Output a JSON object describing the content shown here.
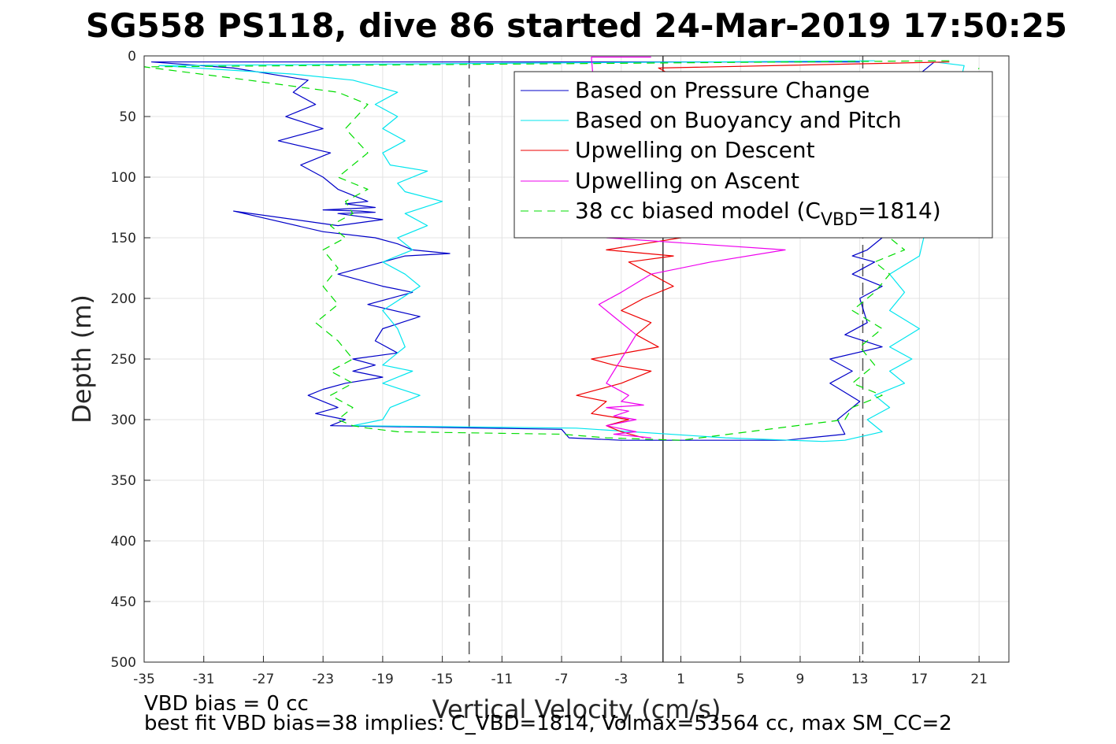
{
  "chart_data": {
    "type": "line",
    "title": "SG558 PS118, dive 86 started 24-Mar-2019 17:50:25",
    "xlabel": "Vertical Velocity (cm/s)",
    "ylabel": "Depth (m)",
    "xlim": [
      -35,
      23
    ],
    "ylim": [
      0,
      500
    ],
    "y_reversed": true,
    "grid": true,
    "xticks": [
      -35,
      -31,
      -27,
      -23,
      -19,
      -15,
      -11,
      -7,
      -3,
      1,
      5,
      9,
      13,
      17,
      21
    ],
    "yticks": [
      0,
      50,
      100,
      150,
      200,
      250,
      300,
      350,
      400,
      450,
      500
    ],
    "vertical_lines": [
      {
        "x": -13.2,
        "style": "dashed",
        "color": "#555555"
      },
      {
        "x": -0.2,
        "style": "solid",
        "color": "#333333"
      },
      {
        "x": 13.2,
        "style": "dashed",
        "color": "#555555"
      }
    ],
    "legend_position": "top-right",
    "legend": [
      {
        "label": "Based on Pressure Change",
        "color": "#0000c8",
        "dash": "none"
      },
      {
        "label": "Based on Buoyancy and Pitch",
        "color": "#00e5ee",
        "dash": "none"
      },
      {
        "label": "Upwelling on Descent",
        "color": "#ee0000",
        "dash": "none"
      },
      {
        "label": "Upwelling on Ascent",
        "color": "#ee00ee",
        "dash": "none"
      },
      {
        "label_pre": "38 cc biased model (C",
        "label_sub": "VBD",
        "label_post": "=1814)",
        "color": "#00dd00",
        "dash": "10,7"
      }
    ],
    "series": [
      {
        "color": "#0000c8",
        "dash": "none",
        "x": [
          13,
          -34.5,
          -29,
          -24,
          -25,
          -23.5,
          -25.5,
          -23,
          -26,
          -22.5,
          -24.5,
          -23,
          -22,
          -20,
          -21.5,
          -19.5,
          -23,
          -20.5,
          -19.5,
          -22,
          -19,
          -22,
          -29,
          -23,
          -19.5,
          -18,
          -17,
          -14.5,
          -17.5,
          -19,
          -22,
          -19,
          -17,
          -20,
          -16.5,
          -19,
          -19.5,
          -18,
          -21,
          -19.5,
          -21,
          -19,
          -21.5,
          -23,
          -24,
          -22,
          -23.5,
          -21.5,
          -22.5,
          -7,
          -6.5,
          -3,
          -1.5,
          8,
          12,
          11.5,
          12,
          13,
          11,
          12.5,
          11,
          14.5,
          12,
          13.5,
          13,
          14.5,
          12.5,
          14,
          12.5,
          13.5,
          14.5,
          15,
          15.5,
          16,
          17,
          18
        ],
        "y": [
          5,
          5,
          10,
          20,
          30,
          40,
          50,
          60,
          70,
          80,
          90,
          100,
          110,
          120,
          122,
          125,
          127,
          128,
          129,
          130,
          135,
          140,
          128,
          145,
          150,
          155,
          160,
          163,
          165,
          170,
          180,
          190,
          195,
          205,
          215,
          225,
          235,
          245,
          250,
          255,
          260,
          265,
          270,
          275,
          280,
          290,
          295,
          300,
          305,
          308,
          315,
          317,
          317,
          317,
          312,
          300,
          295,
          285,
          270,
          260,
          250,
          240,
          230,
          220,
          200,
          190,
          180,
          170,
          165,
          160,
          150,
          140,
          110,
          60,
          15,
          5
        ]
      },
      {
        "color": "#00e5ee",
        "dash": "none",
        "x": [
          14,
          -34,
          -25,
          -21,
          -18,
          -19.5,
          -18,
          -19,
          -17.5,
          -19,
          -18.5,
          -16,
          -18,
          -17.5,
          -15,
          -17.5,
          -16,
          -18,
          -17,
          -19,
          -17.5,
          -16.5,
          -19,
          -18,
          -17.5,
          -19,
          -17,
          -19,
          -16.5,
          -18.5,
          -19,
          -21,
          -6,
          4,
          10.5,
          12,
          14.5,
          13.5,
          15,
          14,
          16,
          15,
          16.5,
          15,
          17,
          15,
          16,
          15,
          17,
          20,
          18
        ],
        "y": [
          4,
          8,
          15,
          20,
          30,
          40,
          50,
          60,
          70,
          80,
          90,
          95,
          105,
          112,
          120,
          130,
          140,
          150,
          160,
          170,
          180,
          190,
          210,
          225,
          240,
          255,
          260,
          270,
          280,
          290,
          300,
          305,
          307,
          315,
          318,
          317,
          310,
          300,
          290,
          280,
          270,
          260,
          250,
          240,
          225,
          210,
          195,
          180,
          165,
          8,
          5
        ]
      },
      {
        "color": "#ee0000",
        "dash": "none",
        "x": [
          19,
          -0.5,
          1,
          2,
          0.5,
          1.5,
          3,
          1,
          2.5,
          1,
          -1.5,
          -4,
          0.5,
          -2.5,
          -1,
          0.5,
          -1.5,
          -3,
          -1,
          -2,
          -0.5,
          -5,
          -3.5,
          -1,
          -3,
          -6,
          -4,
          -5,
          -2.5,
          -4,
          -3,
          -1.5
        ],
        "y": [
          5,
          10,
          20,
          40,
          60,
          80,
          100,
          120,
          140,
          150,
          155,
          160,
          165,
          170,
          180,
          190,
          200,
          210,
          220,
          230,
          240,
          250,
          255,
          260,
          270,
          280,
          285,
          295,
          300,
          305,
          310,
          315
        ]
      },
      {
        "color": "#ee00ee",
        "dash": "none",
        "x": [
          -1,
          -3.5,
          -2,
          -4,
          -2,
          -3.5,
          -2.5,
          -4,
          -1.5,
          -3,
          -2.5,
          -4,
          -3,
          -2,
          -3.5,
          -4.5,
          -3,
          -1,
          3,
          8,
          2,
          -4,
          -5,
          -4.5,
          -3,
          -1
        ],
        "y": [
          315,
          312,
          310,
          305,
          300,
          297,
          293,
          290,
          288,
          285,
          280,
          270,
          250,
          230,
          215,
          205,
          195,
          180,
          170,
          160,
          155,
          150,
          1,
          1,
          1,
          1
        ]
      },
      {
        "color": "#00dd00",
        "dash": "10,7",
        "x": [
          19,
          -35,
          -28,
          -22,
          -20,
          -21.5,
          -20,
          -22,
          -20,
          -21.5,
          -21,
          -22.5,
          -21.5,
          -23,
          -22,
          -23,
          -22,
          -23.5,
          -22,
          -21,
          -22.5,
          -21,
          -22.5,
          -21,
          -22,
          -21,
          -20,
          -18,
          -7,
          -4,
          1,
          12,
          12.5,
          14.5,
          12.5,
          14,
          13,
          14.5,
          12.5,
          14,
          15,
          14,
          16,
          15,
          17,
          21
        ],
        "y": [
          4,
          9,
          20,
          30,
          40,
          60,
          80,
          100,
          110,
          120,
          130,
          140,
          150,
          160,
          175,
          190,
          205,
          220,
          235,
          250,
          260,
          270,
          280,
          290,
          300,
          305,
          307,
          310,
          312,
          315,
          317,
          300,
          290,
          280,
          270,
          255,
          240,
          225,
          210,
          195,
          180,
          170,
          160,
          150,
          100,
          10
        ]
      }
    ],
    "annotations": [
      "VBD bias = 0 cc",
      "best fit VBD bias=38 implies: C_VBD=1814, Volmax=53564 cc, max SM_CC=2"
    ]
  }
}
